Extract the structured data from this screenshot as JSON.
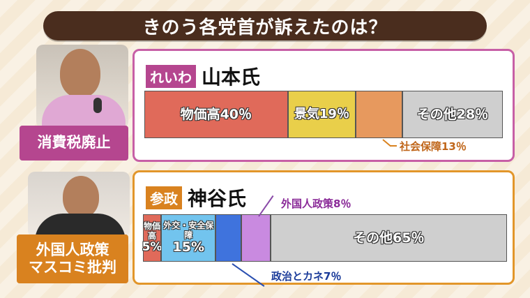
{
  "title": "きのう各党首が訴えたのは？",
  "colors": {
    "reiwa": "#b5468f",
    "sansei": "#d9821f",
    "seg_price": "#e06a5a",
    "seg_keiki": "#e9cf4a",
    "seg_social": "#e7995e",
    "seg_other": "#cfcfcf",
    "seg_diplomacy": "#72c4ee",
    "seg_politics": "#3f73dd",
    "seg_foreigner": "#c98ae0"
  },
  "speakers": [
    {
      "label_lines": [
        "消費税廃止"
      ],
      "party_tag": "れいわ",
      "name": "山本氏"
    },
    {
      "label_lines": [
        "外国人政策",
        "マスコミ批判"
      ],
      "party_tag": "参政",
      "name": "神谷氏"
    }
  ],
  "chart_data": [
    {
      "type": "bar",
      "stacked": true,
      "categories": [
        "物価高",
        "景気",
        "社会保障",
        "その他"
      ],
      "values": [
        40,
        19,
        13,
        28
      ],
      "labels": [
        "物価高40％",
        "景気19％",
        "社会保障13％",
        "その他28％"
      ]
    },
    {
      "type": "bar",
      "stacked": true,
      "categories": [
        "物価高",
        "外交・安全保障",
        "政治とカネ",
        "外国人政策",
        "その他"
      ],
      "values": [
        5,
        15,
        7,
        8,
        65
      ],
      "labels": [
        "物価高",
        "5%",
        "外交・安全保障",
        "15%",
        "政治とカネ7％",
        "外国人政策8％",
        "その他65％"
      ]
    }
  ]
}
